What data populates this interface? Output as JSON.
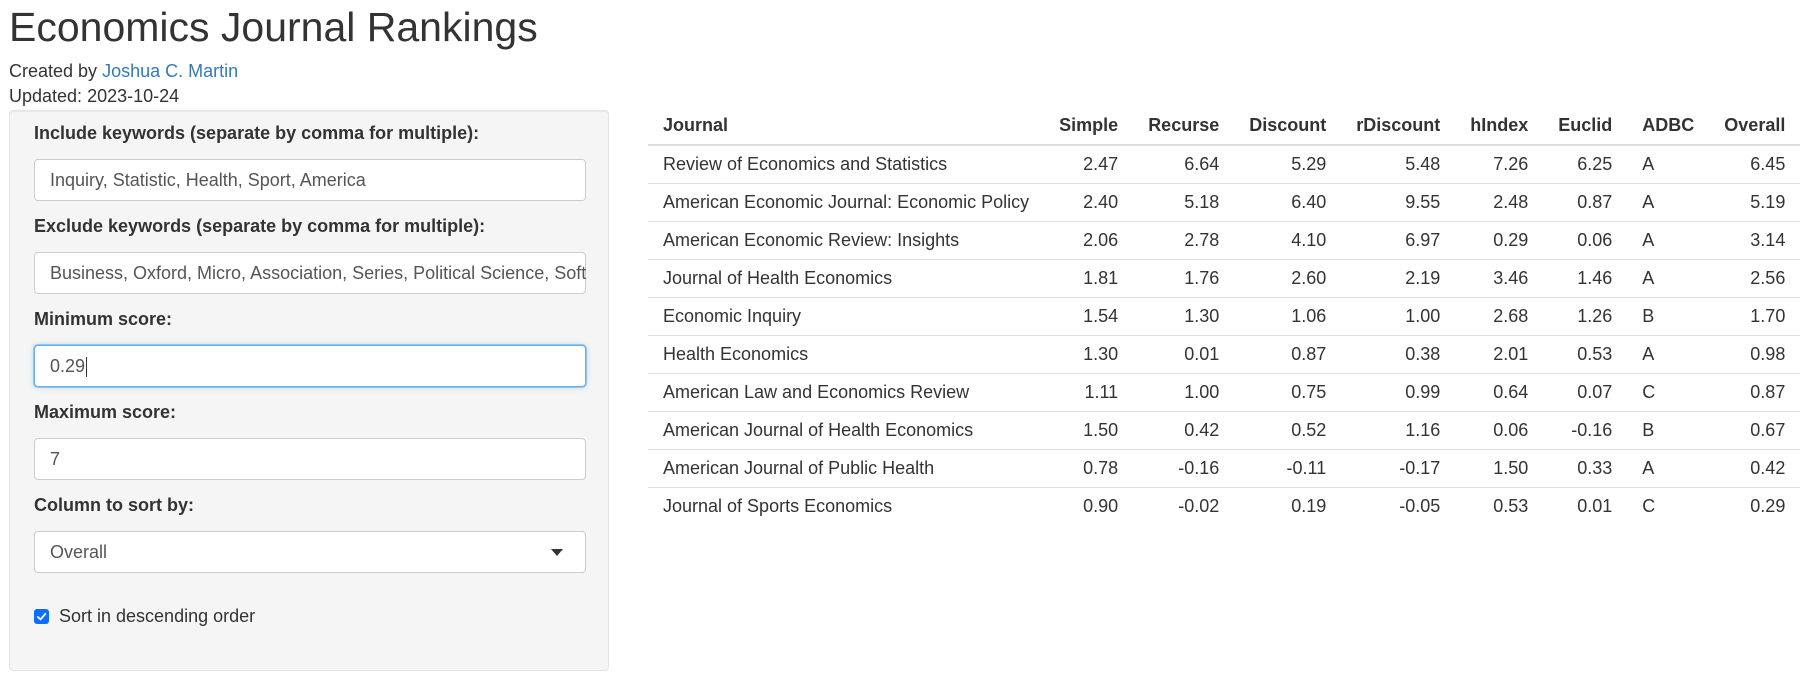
{
  "header": {
    "title": "Economics Journal Rankings",
    "created_by_prefix": "Created by ",
    "author": "Joshua C. Martin",
    "updated_label": "Updated: ",
    "updated_date": "2023-10-24"
  },
  "sidebar": {
    "include": {
      "label": "Include keywords (separate by comma for multiple):",
      "value": "Inquiry, Statistic, Health, Sport, America"
    },
    "exclude": {
      "label": "Exclude keywords (separate by comma for multiple):",
      "value": "Business, Oxford, Micro, Association, Series, Political Science, Soft"
    },
    "min_score": {
      "label": "Minimum score:",
      "value": "0.29"
    },
    "max_score": {
      "label": "Maximum score:",
      "value": "7"
    },
    "sort_column": {
      "label": "Column to sort by:",
      "selected": "Overall"
    },
    "descending": {
      "label": "Sort in descending order",
      "checked": true
    }
  },
  "table": {
    "columns": [
      "Journal",
      "Simple",
      "Recurse",
      "Discount",
      "rDiscount",
      "hIndex",
      "Euclid",
      "ADBC",
      "Overall"
    ],
    "rows": [
      [
        "Review of Economics and Statistics",
        "2.47",
        "6.64",
        "5.29",
        "5.48",
        "7.26",
        "6.25",
        "A",
        "6.45"
      ],
      [
        "American Economic Journal: Economic Policy",
        "2.40",
        "5.18",
        "6.40",
        "9.55",
        "2.48",
        "0.87",
        "A",
        "5.19"
      ],
      [
        "American Economic Review: Insights",
        "2.06",
        "2.78",
        "4.10",
        "6.97",
        "0.29",
        "0.06",
        "A",
        "3.14"
      ],
      [
        "Journal of Health Economics",
        "1.81",
        "1.76",
        "2.60",
        "2.19",
        "3.46",
        "1.46",
        "A",
        "2.56"
      ],
      [
        "Economic Inquiry",
        "1.54",
        "1.30",
        "1.06",
        "1.00",
        "2.68",
        "1.26",
        "B",
        "1.70"
      ],
      [
        "Health Economics",
        "1.30",
        "0.01",
        "0.87",
        "0.38",
        "2.01",
        "0.53",
        "A",
        "0.98"
      ],
      [
        "American Law and Economics Review",
        "1.11",
        "1.00",
        "0.75",
        "0.99",
        "0.64",
        "0.07",
        "C",
        "0.87"
      ],
      [
        "American Journal of Health Economics",
        "1.50",
        "0.42",
        "0.52",
        "1.16",
        "0.06",
        "-0.16",
        "B",
        "0.67"
      ],
      [
        "American Journal of Public Health",
        "0.78",
        "-0.16",
        "-0.11",
        "-0.17",
        "1.50",
        "0.33",
        "A",
        "0.42"
      ],
      [
        "Journal of Sports Economics",
        "0.90",
        "-0.02",
        "0.19",
        "-0.05",
        "0.53",
        "0.01",
        "C",
        "0.29"
      ]
    ]
  },
  "colors": {
    "link": "#337ab7",
    "checkbox": "#0d6efd",
    "focus_border": "#66afe9"
  }
}
